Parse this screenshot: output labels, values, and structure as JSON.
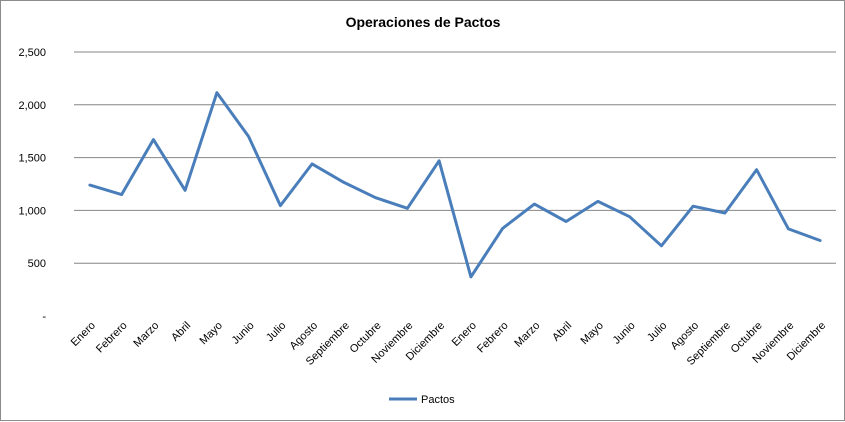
{
  "chart_data": {
    "type": "line",
    "title": "Operaciones de Pactos",
    "xlabel": "",
    "ylabel": "",
    "categories": [
      "Enero",
      "Febrero",
      "Marzo",
      "Abril",
      "Mayo",
      "Junio",
      "Julio",
      "Agosto",
      "Septiembre",
      "Octubre",
      "Noviembre",
      "Diciembre",
      "Enero",
      "Febrero",
      "Marzo",
      "Abril",
      "Mayo",
      "Junio",
      "Julio",
      "Agosto",
      "Septiembre",
      "Octubre",
      "Noviembre",
      "Diciembre"
    ],
    "series": [
      {
        "name": "Pactos",
        "color": "#4a7ebb",
        "values": [
          1240,
          1150,
          1670,
          1190,
          2115,
          1700,
          1045,
          1440,
          1265,
          1120,
          1020,
          1470,
          370,
          830,
          1060,
          895,
          1085,
          940,
          665,
          1040,
          975,
          1385,
          825,
          715
        ]
      }
    ],
    "ylim": [
      0,
      2500
    ],
    "yticks": [
      0,
      500,
      1000,
      1500,
      2000,
      2500
    ],
    "ytick_labels": [
      "-",
      "500",
      "1,000",
      "1,500",
      "2,000",
      "2,500"
    ],
    "grid": true,
    "legend_position": "bottom"
  }
}
